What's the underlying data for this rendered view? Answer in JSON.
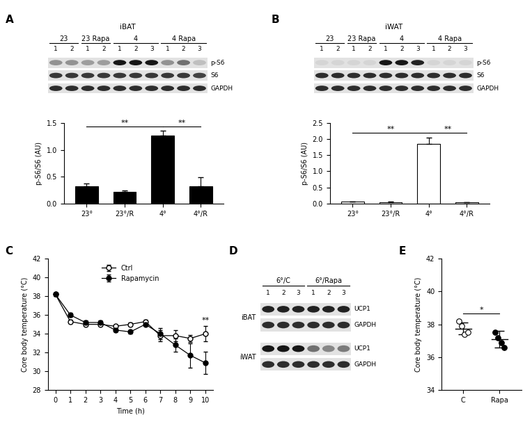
{
  "chart_data": [
    {
      "panel": "A",
      "type": "bar",
      "categories": [
        "23°",
        "23°/R",
        "4°",
        "4°/R"
      ],
      "values": [
        0.32,
        0.22,
        1.27,
        0.32
      ],
      "errors": [
        0.05,
        0.02,
        0.08,
        0.17
      ],
      "color": "#000000",
      "y_label": "p-S6/S6 (AU)",
      "ylim": [
        0,
        1.5
      ],
      "yticks": [
        0.0,
        0.5,
        1.0,
        1.5
      ],
      "annotations": [
        {
          "from": "23°",
          "to": "4°",
          "label": "**"
        },
        {
          "from": "4°",
          "to": "4°/R",
          "label": "**"
        }
      ]
    },
    {
      "panel": "B",
      "type": "bar",
      "categories": [
        "23°",
        "23°/R",
        "4°",
        "4°/R"
      ],
      "values": [
        0.06,
        0.04,
        1.85,
        0.03
      ],
      "errors": [
        0.01,
        0.01,
        0.2,
        0.01
      ],
      "color": "#ffffff",
      "y_label": "p-S6/S6 (AU)",
      "ylim": [
        0,
        2.5
      ],
      "yticks": [
        0.0,
        0.5,
        1.0,
        1.5,
        2.0,
        2.5
      ],
      "annotations": [
        {
          "from": "23°",
          "to": "4°",
          "label": "**"
        },
        {
          "from": "4°",
          "to": "4°/R",
          "label": "**"
        }
      ]
    },
    {
      "panel": "C",
      "type": "line",
      "x": [
        0,
        1,
        2,
        3,
        4,
        5,
        6,
        7,
        8,
        9,
        10
      ],
      "x_label": "Time (h)",
      "y_label": "Core body temperature (°C)",
      "xlim": [
        -0.5,
        10.5
      ],
      "xticks": [
        0,
        1,
        2,
        3,
        4,
        5,
        6,
        7,
        8,
        9,
        10
      ],
      "ylim": [
        28,
        42
      ],
      "yticks": [
        28,
        30,
        32,
        34,
        36,
        38,
        40,
        42
      ],
      "legend": "upper center",
      "series": [
        {
          "name": "Ctrl",
          "color": "#ffffff",
          "marker": "o",
          "line_style": "solid",
          "values": [
            38.2,
            35.3,
            35.0,
            35.0,
            34.8,
            35.0,
            35.3,
            33.8,
            33.8,
            33.5,
            34.0
          ],
          "errors": [
            0.2,
            0.2,
            0.2,
            0.2,
            0.2,
            0.2,
            0.2,
            0.6,
            0.6,
            0.4,
            0.8
          ]
        },
        {
          "name": "Rapamycin",
          "color": "#000000",
          "marker": "o",
          "line_style": "solid",
          "values": [
            38.2,
            36.0,
            35.2,
            35.2,
            34.4,
            34.2,
            35.0,
            34.0,
            32.8,
            31.7,
            30.9
          ],
          "errors": [
            0.2,
            0.2,
            0.2,
            0.2,
            0.2,
            0.2,
            0.2,
            0.6,
            0.7,
            1.3,
            1.2
          ]
        }
      ],
      "annotations": [
        {
          "x": 10,
          "label": "**"
        }
      ]
    },
    {
      "panel": "E",
      "type": "scatter",
      "categories": [
        "C",
        "Rapa"
      ],
      "y_label": "Core body temperature (°C)",
      "ylim": [
        34,
        42
      ],
      "yticks": [
        34,
        36,
        38,
        40,
        42
      ],
      "groups": [
        {
          "color": "#ffffff",
          "values": [
            38.2,
            37.9,
            37.4,
            37.5
          ],
          "mean": 37.75,
          "error": 0.35
        },
        {
          "color": "#000000",
          "values": [
            37.5,
            37.2,
            36.9,
            36.6
          ],
          "mean": 37.1,
          "error": 0.5
        }
      ],
      "annotations": [
        {
          "from": "C",
          "to": "Rapa",
          "label": "*"
        }
      ]
    }
  ],
  "blots": [
    {
      "panel": "A",
      "title": "iBAT",
      "groups": [
        {
          "label": "23",
          "lanes": [
            "1",
            "2"
          ]
        },
        {
          "label": "23 Rapa",
          "lanes": [
            "1",
            "2"
          ]
        },
        {
          "label": "4",
          "lanes": [
            "1",
            "2",
            "3"
          ]
        },
        {
          "label": "4 Rapa",
          "lanes": [
            "1",
            "2",
            "3"
          ]
        }
      ],
      "sections": [
        {
          "rows": [
            {
              "name": "p-S6",
              "intensity": [
                0.35,
                0.35,
                0.3,
                0.3,
                0.9,
                0.9,
                0.9,
                0.35,
                0.5,
                0.15
              ]
            },
            {
              "name": "S6",
              "intensity": [
                0.75,
                0.75,
                0.75,
                0.75,
                0.75,
                0.75,
                0.75,
                0.75,
                0.75,
                0.7
              ]
            },
            {
              "name": "GAPDH",
              "intensity": [
                0.8,
                0.8,
                0.8,
                0.8,
                0.8,
                0.8,
                0.8,
                0.8,
                0.8,
                0.8
              ]
            }
          ]
        }
      ]
    },
    {
      "panel": "B",
      "title": "iWAT",
      "groups": [
        {
          "label": "23",
          "lanes": [
            "1",
            "2"
          ]
        },
        {
          "label": "23 Rapa",
          "lanes": [
            "1",
            "2"
          ]
        },
        {
          "label": "4",
          "lanes": [
            "1",
            "2",
            "3"
          ]
        },
        {
          "label": "4 Rapa",
          "lanes": [
            "1",
            "2",
            "3"
          ]
        }
      ],
      "sections": [
        {
          "rows": [
            {
              "name": "p-S6",
              "intensity": [
                0.05,
                0.05,
                0.05,
                0.05,
                0.9,
                0.9,
                0.85,
                0.05,
                0.05,
                0.05
              ]
            },
            {
              "name": "S6",
              "intensity": [
                0.8,
                0.8,
                0.8,
                0.8,
                0.8,
                0.8,
                0.8,
                0.8,
                0.8,
                0.8
              ]
            },
            {
              "name": "GAPDH",
              "intensity": [
                0.8,
                0.8,
                0.8,
                0.8,
                0.8,
                0.8,
                0.8,
                0.8,
                0.8,
                0.8
              ]
            }
          ]
        }
      ]
    },
    {
      "panel": "D",
      "groups": [
        {
          "label": "6°/C",
          "lanes": [
            "1",
            "2",
            "3"
          ]
        },
        {
          "label": "6°/Rapa",
          "lanes": [
            "1",
            "2",
            "3"
          ]
        }
      ],
      "sections": [
        {
          "label": "iBAT",
          "rows": [
            {
              "name": "UCP1",
              "intensity": [
                0.85,
                0.85,
                0.85,
                0.85,
                0.85,
                0.85
              ]
            },
            {
              "name": "GAPDH",
              "intensity": [
                0.8,
                0.8,
                0.8,
                0.8,
                0.8,
                0.8
              ]
            }
          ]
        },
        {
          "label": "iWAT",
          "rows": [
            {
              "name": "UCP1",
              "intensity": [
                0.9,
                0.9,
                0.9,
                0.5,
                0.4,
                0.45
              ]
            },
            {
              "name": "GAPDH",
              "intensity": [
                0.8,
                0.8,
                0.8,
                0.8,
                0.8,
                0.8
              ]
            }
          ]
        }
      ]
    }
  ]
}
